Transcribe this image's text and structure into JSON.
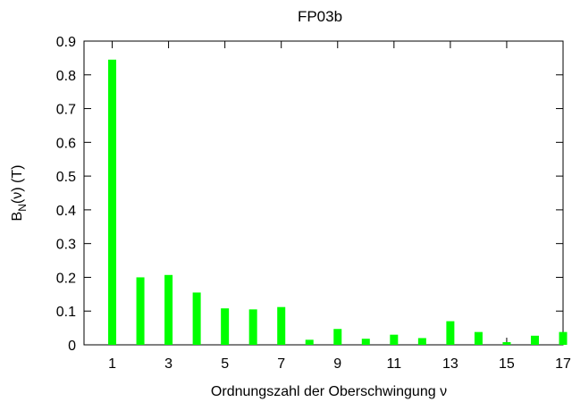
{
  "chart_data": {
    "type": "bar",
    "title": "FP03b",
    "xlabel": "Ordnungszahl der Oberschwingung   ν",
    "ylabel_main": "B",
    "ylabel_sub": "N",
    "ylabel_rest": "(ν) (T)",
    "x": [
      1,
      2,
      3,
      4,
      5,
      6,
      7,
      8,
      9,
      10,
      11,
      12,
      13,
      14,
      15,
      16,
      17
    ],
    "values": [
      0.845,
      0.2,
      0.207,
      0.155,
      0.108,
      0.105,
      0.112,
      0.015,
      0.047,
      0.018,
      0.03,
      0.02,
      0.07,
      0.038,
      0.008,
      0.027,
      0.038
    ],
    "xlim": [
      0,
      17
    ],
    "ylim": [
      0,
      0.9
    ],
    "xticks": [
      "1",
      "3",
      "5",
      "7",
      "9",
      "11",
      "13",
      "15",
      "17"
    ],
    "xtick_values": [
      1,
      3,
      5,
      7,
      9,
      11,
      13,
      15,
      17
    ],
    "yticks": [
      "0",
      "0.1",
      "0.2",
      "0.3",
      "0.4",
      "0.5",
      "0.6",
      "0.7",
      "0.8",
      "0.9"
    ],
    "ytick_values": [
      0,
      0.1,
      0.2,
      0.3,
      0.4,
      0.5,
      0.6,
      0.7,
      0.8,
      0.9
    ],
    "grid": false,
    "bar_color": "#00ff00",
    "axis_color": "#000000"
  }
}
